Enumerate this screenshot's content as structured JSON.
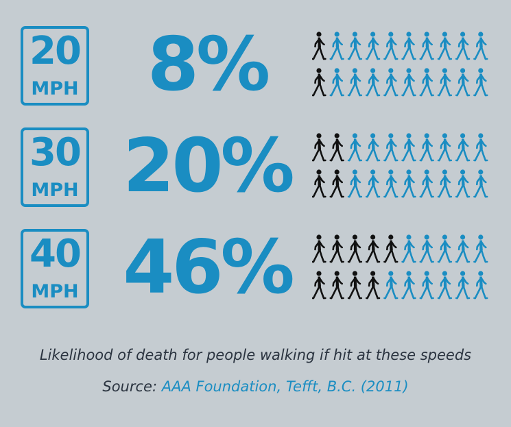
{
  "chart_data": {
    "type": "pictogram",
    "caption": "Likelihood of death for people walking if hit at these speeds",
    "source_prefix": "Source:",
    "source_link": "AAA Foundation, Tefft, B.C. (2011)",
    "unit_label": "MPH",
    "icons_per_row": 20,
    "colors": {
      "background": "#c5ccd1",
      "accent": "#1a8dc2",
      "fatal": "#111111",
      "text": "#2b3440"
    },
    "rows": [
      {
        "speed": "20",
        "percent_label": "8%",
        "percent": 8,
        "fatal_icons": 2
      },
      {
        "speed": "30",
        "percent_label": "20%",
        "percent": 20,
        "fatal_icons": 4
      },
      {
        "speed": "40",
        "percent_label": "46%",
        "percent": 46,
        "fatal_icons": 9
      }
    ]
  }
}
